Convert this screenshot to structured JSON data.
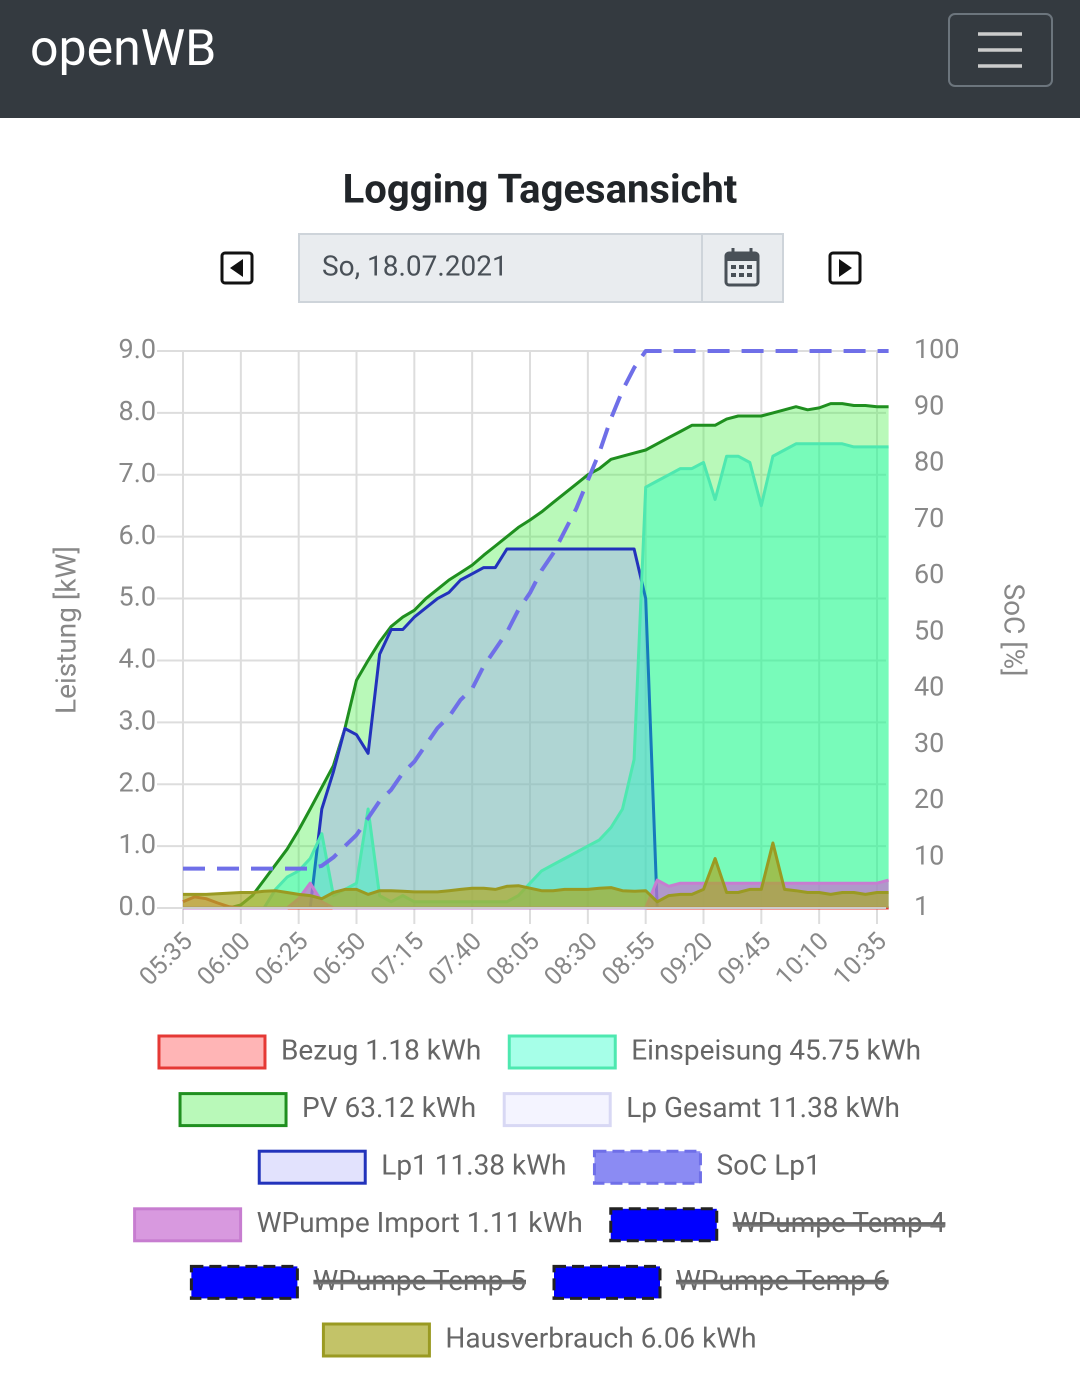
{
  "header": {
    "brand": "openWB"
  },
  "page_title": "Logging Tagesansicht",
  "date_picker": {
    "value": "So, 18.07.2021"
  },
  "chart_data": {
    "type": "area",
    "ylabel": "Leistung [kW]",
    "y2label": "SoC [%]",
    "categories": [
      "05:35",
      null,
      null,
      null,
      null,
      "06:00",
      null,
      null,
      null,
      null,
      "06:25",
      null,
      null,
      null,
      null,
      "06:50",
      null,
      null,
      null,
      null,
      "07:15",
      null,
      null,
      null,
      null,
      "07:40",
      null,
      null,
      null,
      null,
      "08:05",
      null,
      null,
      null,
      null,
      "08:30",
      null,
      null,
      null,
      null,
      "08:55",
      null,
      null,
      null,
      null,
      "09:20",
      null,
      null,
      null,
      null,
      "09:45",
      null,
      null,
      null,
      null,
      "10:10",
      null,
      null,
      null,
      null,
      "10:35",
      null
    ],
    "ylim": [
      0,
      9
    ],
    "yticks": [
      {
        "value": 0,
        "label": "0.0"
      },
      {
        "value": 1,
        "label": "1.0"
      },
      {
        "value": 2,
        "label": "2.0"
      },
      {
        "value": 3,
        "label": "3.0"
      },
      {
        "value": 4,
        "label": "4.0"
      },
      {
        "value": 5,
        "label": "5.0"
      },
      {
        "value": 6,
        "label": "6.0"
      },
      {
        "value": 7,
        "label": "7.0"
      },
      {
        "value": 8,
        "label": "8.0"
      },
      {
        "value": 9,
        "label": "9.0"
      }
    ],
    "y2lim": [
      1,
      100
    ],
    "y2ticks": [
      1,
      10,
      20,
      30,
      40,
      50,
      60,
      70,
      80,
      90,
      100
    ],
    "grid": true,
    "series": [
      {
        "name": "Bezug 1.18 kWh",
        "color": "#e53935",
        "fill": "rgba(255,10,13,0.3)",
        "values": [
          0.1,
          0.18,
          0.15,
          0.08,
          0.02,
          0,
          0,
          0,
          0,
          0,
          0,
          0,
          0,
          0,
          0,
          0,
          0,
          0,
          0,
          0,
          0,
          0,
          0,
          0,
          0,
          0,
          0,
          0,
          0,
          0,
          0,
          0,
          0,
          0,
          0,
          0,
          0,
          0,
          0,
          0,
          0,
          0,
          0,
          0,
          0,
          0,
          0,
          0,
          0,
          0,
          0,
          0,
          0,
          0,
          0,
          0,
          0,
          0,
          0,
          0,
          0,
          0
        ]
      },
      {
        "name": "Einspeisung 45.75 kWh",
        "color": "#4ee8b0",
        "fill": "rgba(0,255,190,0.35)",
        "values": [
          0,
          0,
          0,
          0,
          0,
          0,
          0,
          0,
          0.3,
          0.5,
          0.6,
          0.8,
          1.2,
          0.2,
          0.3,
          0.4,
          1.6,
          0.2,
          0.1,
          0.2,
          0.1,
          0.1,
          0.1,
          0.1,
          0.1,
          0.1,
          0.1,
          0.1,
          0.1,
          0.2,
          0.4,
          0.6,
          0.7,
          0.8,
          0.9,
          1.0,
          1.1,
          1.3,
          1.6,
          2.4,
          6.8,
          6.9,
          7.0,
          7.1,
          7.1,
          7.2,
          6.6,
          7.3,
          7.3,
          7.2,
          6.5,
          7.3,
          7.4,
          7.5,
          7.5,
          7.5,
          7.5,
          7.5,
          7.45,
          7.45,
          7.45,
          7.45
        ]
      },
      {
        "name": "PV 63.12 kWh",
        "color": "#1f8f1f",
        "fill": "rgba(80,240,80,0.4)",
        "values": [
          0,
          0,
          0,
          0,
          0,
          0.05,
          0.2,
          0.45,
          0.7,
          0.95,
          1.26,
          1.6,
          1.95,
          2.3,
          2.9,
          3.68,
          4.0,
          4.3,
          4.55,
          4.7,
          4.81,
          5.0,
          5.15,
          5.3,
          5.42,
          5.54,
          5.7,
          5.85,
          6.0,
          6.15,
          6.27,
          6.4,
          6.55,
          6.7,
          6.85,
          7.0,
          7.1,
          7.25,
          7.3,
          7.35,
          7.4,
          7.5,
          7.6,
          7.7,
          7.8,
          7.8,
          7.8,
          7.9,
          7.95,
          7.95,
          7.95,
          8.0,
          8.05,
          8.1,
          8.05,
          8.08,
          8.15,
          8.15,
          8.12,
          8.12,
          8.1,
          8.1
        ]
      },
      {
        "name": "Lp Gesamt 11.38 kWh",
        "color": "#d8d8f4",
        "fill": "rgba(220,220,255,0.3)",
        "values": [
          0,
          0,
          0,
          0,
          0,
          0,
          0,
          0,
          0,
          0,
          0,
          0,
          1.6,
          2.2,
          2.9,
          2.8,
          2.5,
          4.1,
          4.5,
          4.5,
          4.7,
          4.85,
          5.0,
          5.1,
          5.3,
          5.4,
          5.5,
          5.5,
          5.8,
          5.8,
          5.8,
          5.8,
          5.8,
          5.8,
          5.8,
          5.8,
          5.8,
          5.8,
          5.8,
          5.8,
          5.0,
          0,
          0,
          0,
          0,
          0,
          0,
          0,
          0,
          0,
          0,
          0,
          0,
          0,
          0,
          0,
          0,
          0,
          0,
          0,
          0,
          0
        ]
      },
      {
        "name": "Lp1 11.38 kWh",
        "color": "#2233bb",
        "fill": "rgba(60,60,240,0.15)",
        "values": [
          0,
          0,
          0,
          0,
          0,
          0,
          0,
          0,
          0,
          0,
          0,
          0,
          1.6,
          2.2,
          2.9,
          2.8,
          2.5,
          4.1,
          4.5,
          4.5,
          4.7,
          4.85,
          5.0,
          5.1,
          5.3,
          5.4,
          5.5,
          5.5,
          5.8,
          5.8,
          5.8,
          5.8,
          5.8,
          5.8,
          5.8,
          5.8,
          5.8,
          5.8,
          5.8,
          5.8,
          5.0,
          0,
          0,
          0,
          0,
          0,
          0,
          0,
          0,
          0,
          0,
          0,
          0,
          0,
          0,
          0,
          0,
          0,
          0,
          0,
          0,
          0
        ]
      },
      {
        "name": "SoC Lp1",
        "color": "#6f6fe8",
        "fill": "rgba(110,110,240,0.8)",
        "axis": "y2",
        "dash": true,
        "values": [
          8,
          8,
          8,
          8,
          8,
          8,
          8,
          8,
          8,
          8,
          8,
          8,
          8.5,
          10,
          12,
          14,
          17,
          20,
          22,
          25,
          27,
          30,
          33,
          35,
          38,
          40,
          44,
          47,
          50,
          54,
          57,
          61,
          64,
          68,
          72,
          77,
          82,
          88,
          93,
          97,
          100,
          100,
          100,
          100,
          100,
          100,
          100,
          100,
          100,
          100,
          100,
          100,
          100,
          100,
          100,
          100,
          100,
          100,
          100,
          100,
          100,
          100
        ]
      },
      {
        "name": "WPumpe Import 1.11 kWh",
        "color": "#c77dd0",
        "fill": "rgba(200,110,210,0.7)",
        "values": [
          0,
          0,
          0,
          0,
          0,
          0,
          0,
          0,
          0,
          0,
          0.15,
          0.4,
          0.1,
          0,
          0,
          0,
          0,
          0,
          0,
          0,
          0,
          0,
          0,
          0,
          0,
          0,
          0,
          0,
          0,
          0,
          0,
          0,
          0,
          0,
          0,
          0,
          0,
          0,
          0,
          0,
          0,
          0.45,
          0.35,
          0.4,
          0.4,
          0.4,
          0.4,
          0.4,
          0.4,
          0.4,
          0.4,
          0.4,
          0.4,
          0.4,
          0.4,
          0.4,
          0.4,
          0.4,
          0.4,
          0.4,
          0.4,
          0.45
        ]
      },
      {
        "name": "WPumpe Temp 4",
        "color": "#0000ff",
        "fill": "#0000ff",
        "hidden": true
      },
      {
        "name": "WPumpe Temp 5",
        "color": "#0000ff",
        "fill": "#0000ff",
        "hidden": true
      },
      {
        "name": "WPumpe Temp 6",
        "color": "#0000ff",
        "fill": "#0000ff",
        "hidden": true
      },
      {
        "name": "Hausverbrauch 6.06 kWh",
        "color": "#9a9a22",
        "fill": "rgba(170,170,40,0.7)",
        "values": [
          0.22,
          0.22,
          0.22,
          0.23,
          0.24,
          0.25,
          0.25,
          0.27,
          0.28,
          0.25,
          0.22,
          0.2,
          0.15,
          0.25,
          0.3,
          0.3,
          0.22,
          0.28,
          0.28,
          0.27,
          0.26,
          0.26,
          0.26,
          0.28,
          0.3,
          0.32,
          0.32,
          0.3,
          0.35,
          0.36,
          0.32,
          0.28,
          0.28,
          0.3,
          0.3,
          0.3,
          0.32,
          0.33,
          0.28,
          0.27,
          0.28,
          0.1,
          0.2,
          0.22,
          0.22,
          0.3,
          0.8,
          0.25,
          0.25,
          0.3,
          0.3,
          1.05,
          0.3,
          0.28,
          0.25,
          0.25,
          0.22,
          0.25,
          0.25,
          0.22,
          0.25,
          0.25
        ]
      }
    ]
  }
}
